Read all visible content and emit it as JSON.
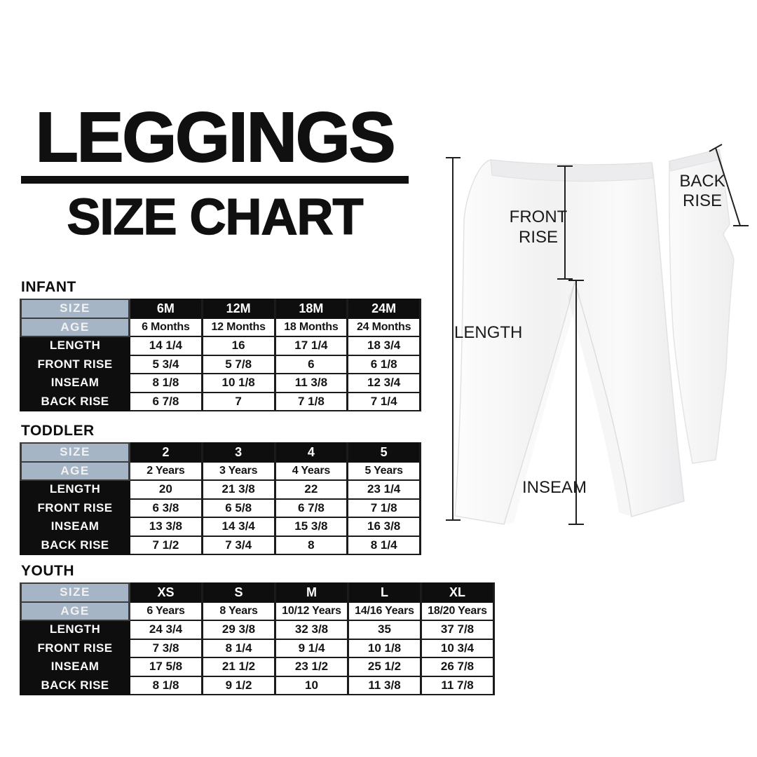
{
  "header": {
    "title": "LEGGINGS",
    "subtitle": "SIZE CHART"
  },
  "colors": {
    "accent_slate": "#a6b5c5",
    "ink_black": "#101010",
    "cell_border": "#1b1b1b",
    "table_white": "#ffffff"
  },
  "tables": {
    "row_labels": {
      "size": "SIZE",
      "age": "AGE"
    },
    "sections": [
      {
        "id": "infant",
        "section_label": "INFANT",
        "sizes": [
          "6M",
          "12M",
          "18M",
          "24M"
        ],
        "ages": [
          "6 Months",
          "12 Months",
          "18 Months",
          "24 Months"
        ],
        "measurements": [
          {
            "label": "LENGTH",
            "values": [
              "14 1/4",
              "16",
              "17 1/4",
              "18 3/4"
            ]
          },
          {
            "label": "FRONT RISE",
            "values": [
              "5 3/4",
              "5 7/8",
              "6",
              "6 1/8"
            ]
          },
          {
            "label": "INSEAM",
            "values": [
              "8 1/8",
              "10 1/8",
              "11 3/8",
              "12 3/4"
            ]
          },
          {
            "label": "BACK RISE",
            "values": [
              "6 7/8",
              "7",
              "7 1/8",
              "7 1/4"
            ]
          }
        ]
      },
      {
        "id": "toddler",
        "section_label": "TODDLER",
        "sizes": [
          "2",
          "3",
          "4",
          "5"
        ],
        "ages": [
          "2 Years",
          "3 Years",
          "4 Years",
          "5 Years"
        ],
        "measurements": [
          {
            "label": "LENGTH",
            "values": [
              "20",
              "21 3/8",
              "22",
              "23 1/4"
            ]
          },
          {
            "label": "FRONT RISE",
            "values": [
              "6 3/8",
              "6 5/8",
              "6 7/8",
              "7 1/8"
            ]
          },
          {
            "label": "INSEAM",
            "values": [
              "13 3/8",
              "14 3/4",
              "15 3/8",
              "16 3/8"
            ]
          },
          {
            "label": "BACK RISE",
            "values": [
              "7 1/2",
              "7 3/4",
              "8",
              "8 1/4"
            ]
          }
        ]
      },
      {
        "id": "youth",
        "section_label": "YOUTH",
        "sizes": [
          "XS",
          "S",
          "M",
          "L",
          "XL"
        ],
        "ages": [
          "6 Years",
          "8 Years",
          "10/12 Years",
          "14/16 Years",
          "18/20 Years"
        ],
        "measurements": [
          {
            "label": "LENGTH",
            "values": [
              "24 3/4",
              "29 3/8",
              "32 3/8",
              "35",
              "37 7/8"
            ]
          },
          {
            "label": "FRONT RISE",
            "values": [
              "7 3/8",
              "8 1/4",
              "9 1/4",
              "10 1/8",
              "10 3/4"
            ]
          },
          {
            "label": "INSEAM",
            "values": [
              "17 5/8",
              "21 1/2",
              "23 1/2",
              "25 1/2",
              "26 7/8"
            ]
          },
          {
            "label": "BACK RISE",
            "values": [
              "8 1/8",
              "9 1/2",
              "10",
              "11 3/8",
              "11 7/8"
            ]
          }
        ]
      }
    ]
  },
  "illustration": {
    "front_rise_label_line1": "FRONT",
    "front_rise_label_line2": "RISE",
    "back_rise_label_line1": "BACK",
    "back_rise_label_line2": "RISE",
    "length_label": "LENGTH",
    "inseam_label": "INSEAM"
  }
}
